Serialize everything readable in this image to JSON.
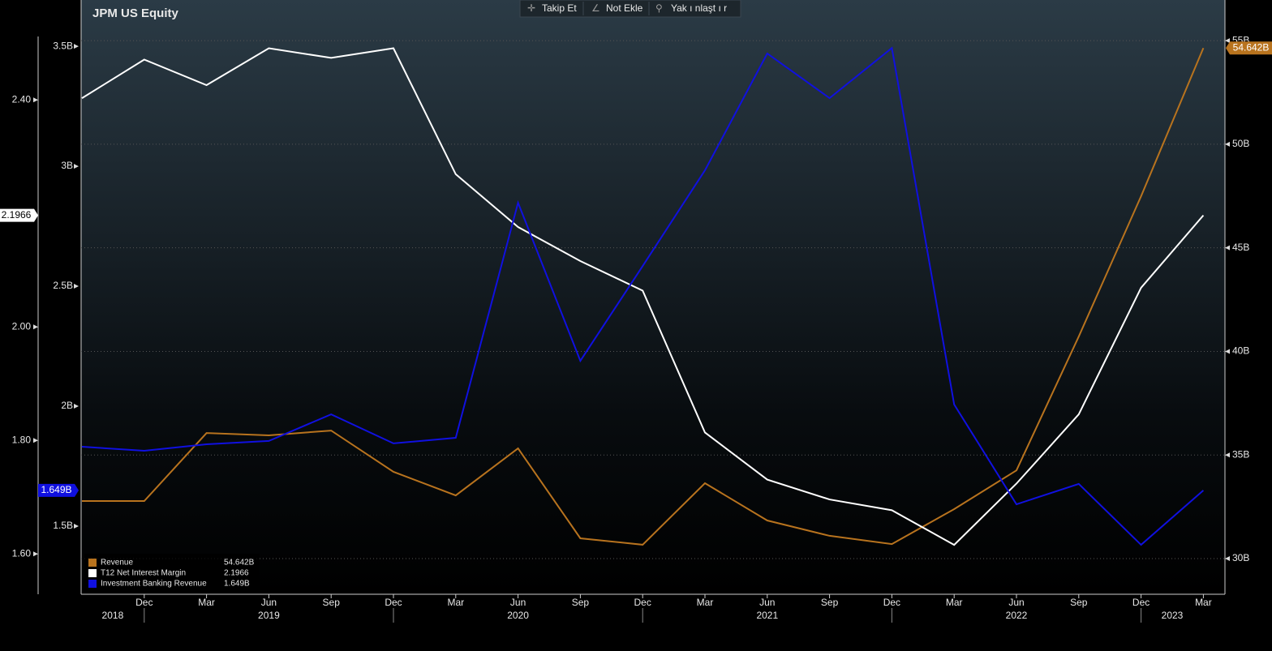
{
  "chart_data": {
    "type": "line",
    "title": "JPM US Equity",
    "toolbar": [
      "Takip Et",
      "Not Ekle",
      "Yak ı nlaşt ı r"
    ],
    "categories": [
      null,
      "Dec",
      "Mar",
      "Jun",
      "Sep",
      "Dec",
      "Mar",
      "Jun",
      "Sep",
      "Dec",
      "Mar",
      "Jun",
      "Sep",
      "Dec",
      "Mar",
      "Jun",
      "Sep",
      "Dec",
      "Mar"
    ],
    "x_groups": [
      {
        "label": "2018",
        "from": 0,
        "to": 1
      },
      {
        "label": "2019",
        "from": 1,
        "to": 5
      },
      {
        "label": "2020",
        "from": 5,
        "to": 9
      },
      {
        "label": "2021",
        "from": 9,
        "to": 13
      },
      {
        "label": "2022",
        "from": 13,
        "to": 17
      },
      {
        "label": "2023",
        "from": 17,
        "to": 18
      }
    ],
    "ylim": [
      1.529,
      2.576
    ],
    "yticks": [
      {
        "value": 1.6,
        "label": "1.60"
      },
      {
        "value": 1.8,
        "label": "1.80"
      },
      {
        "value": 2.0,
        "label": "2.00"
      },
      {
        "value": 2.4,
        "label": "2.40"
      }
    ],
    "y2lim": [
      1.216,
      3.693
    ],
    "y2ticks": [
      {
        "value": 1.5,
        "label": "1.5B"
      },
      {
        "value": 2,
        "label": "2B"
      },
      {
        "value": 2.5,
        "label": "2.5B"
      },
      {
        "value": 3,
        "label": "3B"
      },
      {
        "value": 3.5,
        "label": "3.5B"
      }
    ],
    "y3lim": [
      28.28,
      56.96
    ],
    "y3ticks": [
      {
        "value": 30,
        "label": "30B"
      },
      {
        "value": 35,
        "label": "35B"
      },
      {
        "value": 40,
        "label": "40B"
      },
      {
        "value": 45,
        "label": "45B"
      },
      {
        "value": 50,
        "label": "50B"
      },
      {
        "value": 55,
        "label": "55B"
      }
    ],
    "grid": true,
    "legend": "bottom-left",
    "series": [
      {
        "name": "Revenue",
        "color": "#b8731e",
        "axis": "y3",
        "last_value_label": "54.642B",
        "values": [
          32.78,
          32.78,
          36.06,
          35.95,
          36.18,
          34.19,
          33.05,
          35.32,
          30.98,
          30.67,
          33.64,
          31.84,
          31.1,
          30.7,
          32.39,
          34.26,
          40.72,
          47.49,
          54.642
        ]
      },
      {
        "name": "T12 Net Interest Margin",
        "color": "#ffffff",
        "axis": "y",
        "last_value_label": "2.1966",
        "values": [
          2.403,
          2.471,
          2.426,
          2.491,
          2.474,
          2.491,
          2.269,
          2.176,
          2.116,
          2.064,
          1.814,
          1.731,
          1.696,
          1.677,
          1.616,
          1.724,
          1.846,
          2.069,
          2.1966
        ]
      },
      {
        "name": "Investment Banking Revenue",
        "color": "#1010e0",
        "axis": "y2",
        "last_value_label": "1.649B",
        "values": [
          1.831,
          1.814,
          1.841,
          1.855,
          1.966,
          1.845,
          1.868,
          2.848,
          2.189,
          2.584,
          2.983,
          3.47,
          3.284,
          3.493,
          2.007,
          1.591,
          1.676,
          1.422,
          1.649
        ]
      }
    ]
  }
}
